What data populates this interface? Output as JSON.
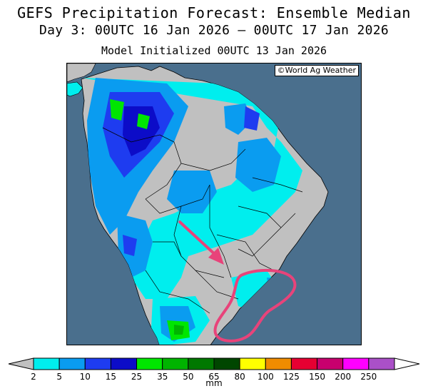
{
  "header": {
    "title": "GEFS Precipitation Forecast: Ensemble Median",
    "period": "Day 3: 00UTC 16 Jan 2026 — 00UTC 17 Jan 2026",
    "initialized": "Model Initialized 00UTC 13 Jan 2026"
  },
  "map": {
    "credit": "©World Ag Weather",
    "region": "South America",
    "annotations": [
      {
        "type": "arrow",
        "color": "#e8437a"
      },
      {
        "type": "loop",
        "color": "#e8437a"
      }
    ],
    "colors": {
      "ocean": "#4a6f8d",
      "land_dry": "#c0c0c0",
      "border": "#000000"
    }
  },
  "legend": {
    "unit": "mm",
    "ticks": [
      "2",
      "5",
      "10",
      "15",
      "25",
      "35",
      "50",
      "65",
      "80",
      "100",
      "125",
      "150",
      "200",
      "250"
    ],
    "colors": [
      "#00eeee",
      "#0a9cf0",
      "#1e3cf0",
      "#0c0cc8",
      "#00e600",
      "#00b400",
      "#007800",
      "#004600",
      "#ffff00",
      "#f08c00",
      "#e60032",
      "#c8006e",
      "#ff00ff",
      "#aa50c8"
    ],
    "end_left_color": "#c0c0c0",
    "end_right_color": "#ffffff"
  }
}
